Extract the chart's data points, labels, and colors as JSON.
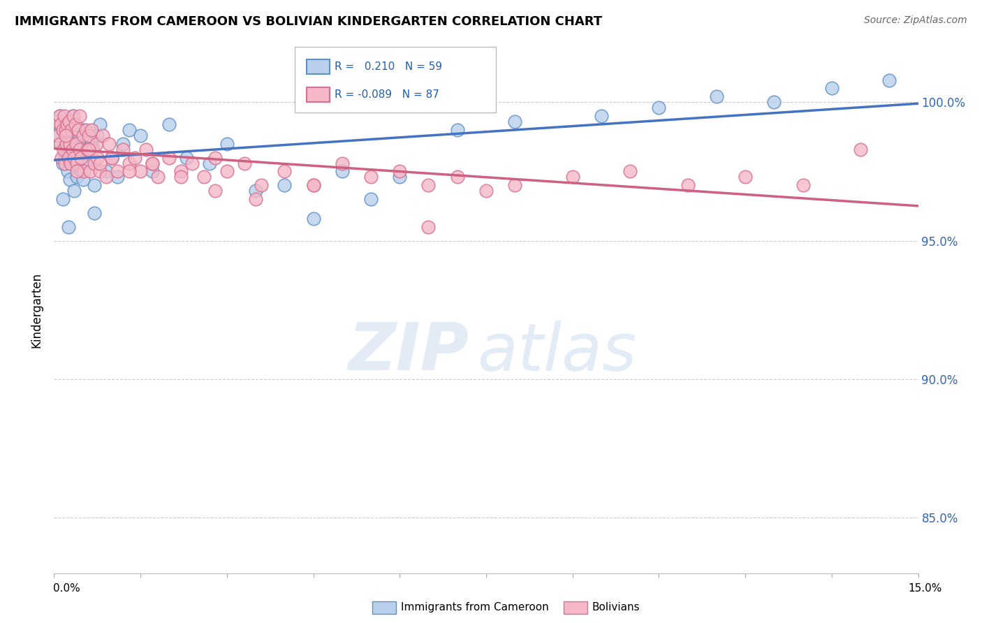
{
  "title": "IMMIGRANTS FROM CAMEROON VS BOLIVIAN KINDERGARTEN CORRELATION CHART",
  "source": "Source: ZipAtlas.com",
  "ylabel": "Kindergarten",
  "ytick_values": [
    85.0,
    90.0,
    95.0,
    100.0
  ],
  "xmin": 0.0,
  "xmax": 15.0,
  "ymin": 83.0,
  "ymax": 102.0,
  "r_cameroon": 0.21,
  "n_cameroon": 59,
  "r_bolivian": -0.089,
  "n_bolivian": 87,
  "color_cameroon_fill": "#b8d0ec",
  "color_bolivian_fill": "#f4b8c8",
  "color_cameroon_edge": "#6090c8",
  "color_bolivian_edge": "#d87090",
  "color_cameroon_line": "#4472c4",
  "color_bolivian_line": "#d06080",
  "legend_r_color": "#2060b0",
  "cameroon_x": [
    0.05,
    0.08,
    0.1,
    0.12,
    0.14,
    0.15,
    0.17,
    0.18,
    0.2,
    0.22,
    0.24,
    0.25,
    0.27,
    0.28,
    0.3,
    0.32,
    0.35,
    0.37,
    0.4,
    0.42,
    0.45,
    0.48,
    0.5,
    0.55,
    0.6,
    0.65,
    0.7,
    0.75,
    0.8,
    0.9,
    1.0,
    1.1,
    1.2,
    1.3,
    1.5,
    1.7,
    2.0,
    2.3,
    2.7,
    3.0,
    3.5,
    4.0,
    4.5,
    5.0,
    5.5,
    6.0,
    7.0,
    8.0,
    9.5,
    10.5,
    11.5,
    12.5,
    13.5,
    14.5,
    0.15,
    0.25,
    0.35,
    0.5,
    0.7
  ],
  "cameroon_y": [
    98.8,
    99.2,
    99.5,
    98.5,
    99.0,
    97.8,
    99.3,
    98.0,
    98.5,
    99.1,
    97.5,
    98.8,
    99.0,
    97.2,
    98.3,
    99.5,
    97.8,
    98.5,
    97.3,
    98.0,
    98.8,
    97.5,
    99.0,
    98.3,
    97.8,
    98.5,
    97.0,
    98.8,
    99.2,
    97.5,
    98.0,
    97.3,
    98.5,
    99.0,
    98.8,
    97.5,
    99.2,
    98.0,
    97.8,
    98.5,
    96.8,
    97.0,
    95.8,
    97.5,
    96.5,
    97.3,
    99.0,
    99.3,
    99.5,
    99.8,
    100.2,
    100.0,
    100.5,
    100.8,
    96.5,
    95.5,
    96.8,
    97.2,
    96.0
  ],
  "bolivian_x": [
    0.05,
    0.07,
    0.09,
    0.1,
    0.12,
    0.13,
    0.15,
    0.16,
    0.18,
    0.19,
    0.2,
    0.22,
    0.23,
    0.25,
    0.26,
    0.28,
    0.29,
    0.3,
    0.32,
    0.33,
    0.35,
    0.37,
    0.38,
    0.4,
    0.42,
    0.44,
    0.45,
    0.47,
    0.5,
    0.52,
    0.55,
    0.58,
    0.6,
    0.63,
    0.65,
    0.68,
    0.7,
    0.73,
    0.75,
    0.8,
    0.85,
    0.9,
    0.95,
    1.0,
    1.1,
    1.2,
    1.3,
    1.4,
    1.5,
    1.6,
    1.7,
    1.8,
    2.0,
    2.2,
    2.4,
    2.6,
    2.8,
    3.0,
    3.3,
    3.6,
    4.0,
    4.5,
    5.0,
    5.5,
    6.0,
    6.5,
    7.0,
    7.5,
    8.0,
    9.0,
    10.0,
    11.0,
    12.0,
    13.0,
    14.0,
    0.2,
    0.4,
    0.6,
    0.8,
    1.0,
    1.3,
    1.7,
    2.2,
    2.8,
    3.5,
    4.5,
    6.5
  ],
  "bolivian_y": [
    99.3,
    98.8,
    99.5,
    98.5,
    99.2,
    98.0,
    99.0,
    98.3,
    99.5,
    97.8,
    99.0,
    98.5,
    99.2,
    98.0,
    99.3,
    98.5,
    97.8,
    99.0,
    98.3,
    99.5,
    98.0,
    99.2,
    98.5,
    97.8,
    99.0,
    98.3,
    99.5,
    98.0,
    98.8,
    97.5,
    99.0,
    98.3,
    98.8,
    97.5,
    99.0,
    98.3,
    97.8,
    98.5,
    98.0,
    97.5,
    98.8,
    97.3,
    98.5,
    98.0,
    97.5,
    98.3,
    97.8,
    98.0,
    97.5,
    98.3,
    97.8,
    97.3,
    98.0,
    97.5,
    97.8,
    97.3,
    98.0,
    97.5,
    97.8,
    97.0,
    97.5,
    97.0,
    97.8,
    97.3,
    97.5,
    97.0,
    97.3,
    96.8,
    97.0,
    97.3,
    97.5,
    97.0,
    97.3,
    97.0,
    98.3,
    98.8,
    97.5,
    98.3,
    97.8,
    98.0,
    97.5,
    97.8,
    97.3,
    96.8,
    96.5,
    97.0,
    95.5
  ]
}
